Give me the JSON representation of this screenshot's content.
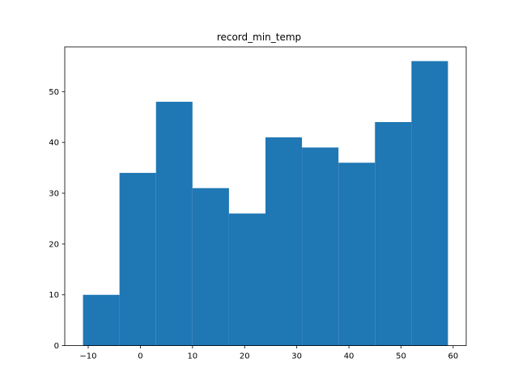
{
  "chart_data": {
    "type": "bar",
    "title": "record_min_temp",
    "xlabel": "",
    "ylabel": "",
    "bar_color": "#1f77b4",
    "bins": [
      {
        "x0": -11.0,
        "x1": -4.0,
        "count": 10
      },
      {
        "x0": -4.0,
        "x1": 3.0,
        "count": 34
      },
      {
        "x0": 3.0,
        "x1": 10.0,
        "count": 48
      },
      {
        "x0": 10.0,
        "x1": 17.0,
        "count": 31
      },
      {
        "x0": 17.0,
        "x1": 24.0,
        "count": 26
      },
      {
        "x0": 24.0,
        "x1": 31.0,
        "count": 41
      },
      {
        "x0": 31.0,
        "x1": 38.0,
        "count": 39
      },
      {
        "x0": 38.0,
        "x1": 45.0,
        "count": 36
      },
      {
        "x0": 45.0,
        "x1": 52.0,
        "count": 44
      },
      {
        "x0": 52.0,
        "x1": 59.0,
        "count": 56
      }
    ],
    "xlim": [
      -14.5,
      62.5
    ],
    "ylim": [
      0,
      58.8
    ],
    "xticks": [
      -10,
      0,
      10,
      20,
      30,
      40,
      50,
      60
    ],
    "yticks": [
      0,
      10,
      20,
      30,
      40,
      50
    ],
    "grid": false,
    "legend": "none"
  }
}
